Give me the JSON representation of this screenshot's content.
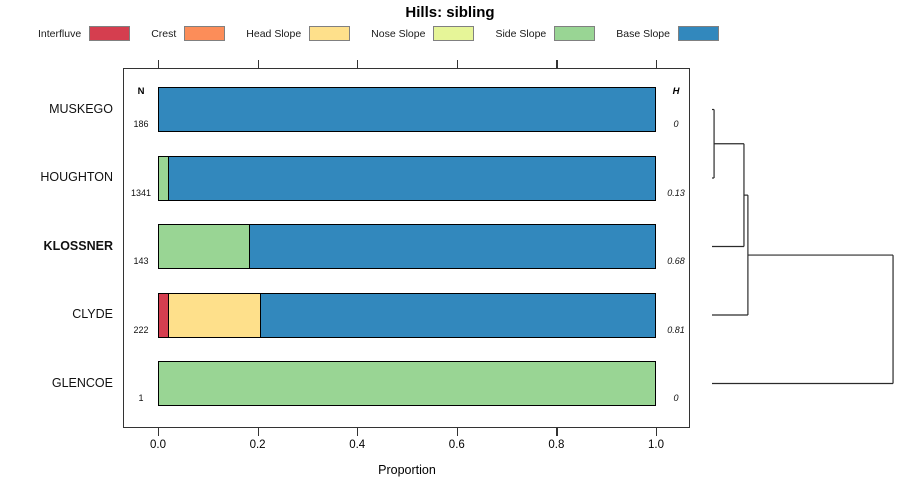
{
  "title": "Hills: sibling",
  "legend": {
    "items": [
      {
        "label": "Interfluve",
        "color": "#D53E4F"
      },
      {
        "label": "Crest",
        "color": "#FC8D59"
      },
      {
        "label": "Head Slope",
        "color": "#FEE08B"
      },
      {
        "label": "Nose Slope",
        "color": "#E6F598"
      },
      {
        "label": "Side Slope",
        "color": "#99D594"
      },
      {
        "label": "Base Slope",
        "color": "#3288BD"
      }
    ]
  },
  "chart_data": {
    "type": "bar",
    "orientation": "horizontal",
    "stacked": true,
    "title": "Hills: sibling",
    "xlabel": "Proportion",
    "xlim": [
      0,
      1
    ],
    "xticks": [
      0,
      0.2,
      0.4,
      0.6,
      0.8,
      1.0
    ],
    "xtick_labels": [
      "0.0",
      "0.2",
      "0.4",
      "0.6",
      "0.8",
      "1.0"
    ],
    "n_header": "N",
    "h_header": "H",
    "grid": false,
    "legend_position": "top",
    "series_colors": {
      "Interfluve": "#D53E4F",
      "Crest": "#FC8D59",
      "Head Slope": "#FEE08B",
      "Nose Slope": "#E6F598",
      "Side Slope": "#99D594",
      "Base Slope": "#3288BD"
    },
    "categories": [
      "MUSKEGO",
      "HOUGHTON",
      "KLOSSNER",
      "CLYDE",
      "GLENCOE"
    ],
    "highlighted_category": "KLOSSNER",
    "rows": [
      {
        "label": "MUSKEGO",
        "bold": false,
        "n": "186",
        "h": "0",
        "segments": [
          {
            "name": "Base Slope",
            "value": 1.0
          }
        ]
      },
      {
        "label": "HOUGHTON",
        "bold": false,
        "n": "1341",
        "h": "0.13",
        "segments": [
          {
            "name": "Side Slope",
            "value": 0.018
          },
          {
            "name": "Base Slope",
            "value": 0.982
          }
        ]
      },
      {
        "label": "KLOSSNER",
        "bold": true,
        "n": "143",
        "h": "0.68",
        "segments": [
          {
            "name": "Side Slope",
            "value": 0.182
          },
          {
            "name": "Base Slope",
            "value": 0.818
          }
        ]
      },
      {
        "label": "CLYDE",
        "bold": false,
        "n": "222",
        "h": "0.81",
        "segments": [
          {
            "name": "Interfluve",
            "value": 0.018
          },
          {
            "name": "Head Slope",
            "value": 0.185
          },
          {
            "name": "Base Slope",
            "value": 0.797
          }
        ]
      },
      {
        "label": "GLENCOE",
        "bold": false,
        "n": "1",
        "h": "0",
        "segments": [
          {
            "name": "Side Slope",
            "value": 1.0
          }
        ]
      }
    ],
    "dendrogram": {
      "leaves": [
        "MUSKEGO",
        "HOUGHTON",
        "KLOSSNER",
        "CLYDE",
        "GLENCOE"
      ],
      "merges": [
        {
          "children": [
            0,
            1
          ],
          "height": 0.011
        },
        {
          "children": [
            5,
            2
          ],
          "height": 0.17
        },
        {
          "children": [
            6,
            3
          ],
          "height": 0.191
        },
        {
          "children": [
            7,
            4
          ],
          "height": 0.963
        }
      ]
    }
  }
}
